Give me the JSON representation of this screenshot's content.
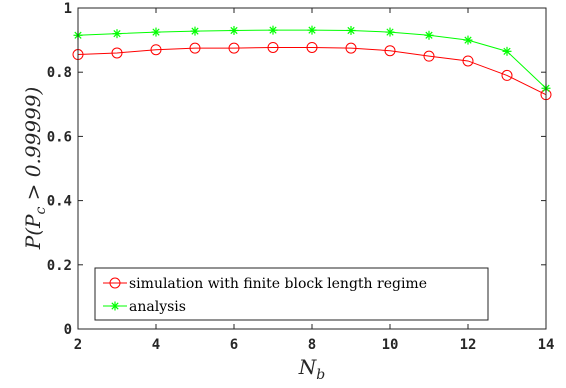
{
  "chart_data": {
    "type": "line",
    "title": "",
    "xlabel": "N_b",
    "ylabel": "P(P_c > 0.99999)",
    "xlim": [
      2,
      14
    ],
    "ylim": [
      0,
      1
    ],
    "xticks": [
      2,
      4,
      6,
      8,
      10,
      12,
      14
    ],
    "yticks": [
      0,
      0.2,
      0.4,
      0.6,
      0.8,
      1
    ],
    "ytick_labels": [
      "0",
      "0.2",
      "0.4",
      "0.6",
      "0.8",
      "1"
    ],
    "grid": false,
    "legend_position": "bottom-left",
    "x": [
      2,
      3,
      4,
      5,
      6,
      7,
      8,
      9,
      10,
      11,
      12,
      13,
      14
    ],
    "series": [
      {
        "name": "simulation with finite block length regime",
        "marker": "circle",
        "color": "#ff0000",
        "values": [
          0.855,
          0.86,
          0.87,
          0.875,
          0.875,
          0.877,
          0.877,
          0.875,
          0.867,
          0.85,
          0.835,
          0.79,
          0.73
        ]
      },
      {
        "name": "analysis",
        "marker": "asterisk",
        "color": "#00ff00",
        "values": [
          0.915,
          0.92,
          0.925,
          0.928,
          0.93,
          0.931,
          0.931,
          0.93,
          0.925,
          0.915,
          0.9,
          0.865,
          0.75
        ]
      }
    ]
  }
}
